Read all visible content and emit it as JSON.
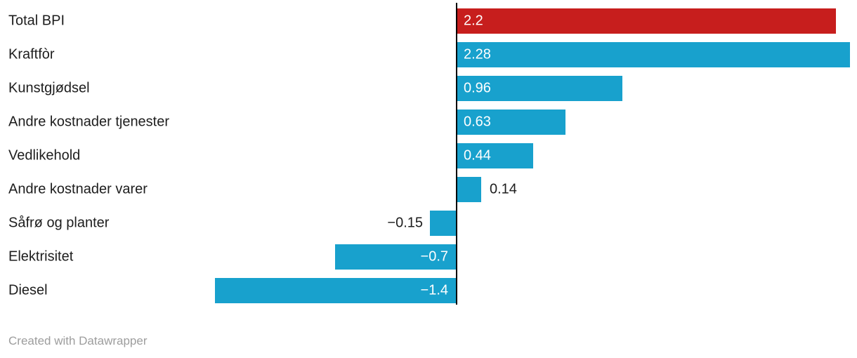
{
  "chart_data": {
    "type": "bar",
    "orientation": "horizontal",
    "categories": [
      "Total BPI",
      "Kraftfòr",
      "Kunstgjødsel",
      "Andre kostnader tjenester",
      "Vedlikehold",
      "Andre kostnader varer",
      "Såfrø og planter",
      "Elektrisitet",
      "Diesel"
    ],
    "values": [
      2.2,
      2.28,
      0.96,
      0.63,
      0.44,
      0.14,
      -0.15,
      -0.7,
      -1.4
    ],
    "display_values": [
      "2.2",
      "2.28",
      "0.96",
      "0.63",
      "0.44",
      "0.14",
      "−0.15",
      "−0.7",
      "−1.4"
    ],
    "bar_colors": [
      "#c71e1d",
      "#18a1cd",
      "#18a1cd",
      "#18a1cd",
      "#18a1cd",
      "#18a1cd",
      "#18a1cd",
      "#18a1cd",
      "#18a1cd"
    ],
    "label_inside": [
      true,
      true,
      true,
      true,
      true,
      false,
      false,
      true,
      true
    ],
    "xlim": [
      -1.4,
      2.28
    ],
    "title": "",
    "xlabel": "",
    "ylabel": "",
    "grid": false,
    "legend": "none",
    "colors": {
      "highlight_red": "#c71e1d",
      "default_blue": "#18a1cd",
      "axis_black": "#000000",
      "label_text": "#1d1d1d",
      "footer_gray": "#9d9d9d"
    }
  },
  "footer": {
    "credit": "Created with Datawrapper"
  }
}
